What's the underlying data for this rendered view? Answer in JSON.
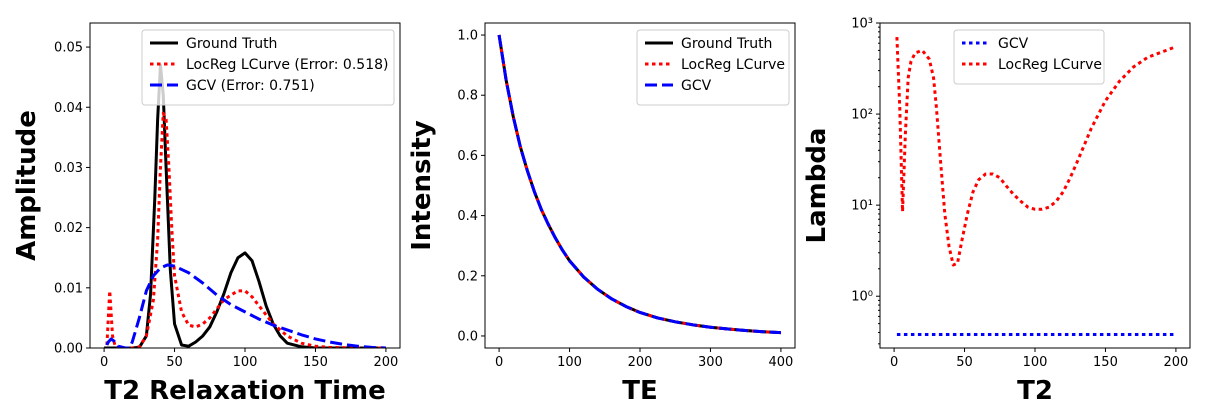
{
  "chart_data": [
    {
      "type": "line",
      "xlabel": "T2 Relaxation Time",
      "ylabel": "Amplitude",
      "xlim": [
        -10,
        210
      ],
      "ylim": [
        0,
        0.054
      ],
      "xticks": [
        0,
        50,
        100,
        150,
        200
      ],
      "yticks": [
        0.0,
        0.01,
        0.02,
        0.03,
        0.04,
        0.05
      ],
      "ytick_labels": [
        "0.00",
        "0.01",
        "0.02",
        "0.03",
        "0.04",
        "0.05"
      ],
      "legend_position": "top-right",
      "series": [
        {
          "name": "Ground Truth",
          "color": "#000000",
          "style": "solid",
          "x": [
            0,
            20,
            25,
            30,
            33,
            36,
            38,
            40,
            42,
            44,
            47,
            50,
            55,
            60,
            65,
            70,
            75,
            80,
            85,
            90,
            95,
            100,
            105,
            110,
            115,
            120,
            125,
            130,
            140,
            150,
            200
          ],
          "y": [
            0,
            0,
            0.0001,
            0.002,
            0.009,
            0.025,
            0.038,
            0.047,
            0.042,
            0.03,
            0.013,
            0.004,
            0.0005,
            0.0003,
            0.001,
            0.002,
            0.0035,
            0.006,
            0.009,
            0.0125,
            0.015,
            0.0158,
            0.0145,
            0.011,
            0.007,
            0.004,
            0.002,
            0.0008,
            0.0002,
            0,
            0
          ]
        },
        {
          "name": "LocReg LCurve (Error: 0.518)",
          "color": "#ff0000",
          "style": "dotted",
          "x": [
            2,
            4,
            6,
            8,
            10,
            15,
            20,
            25,
            30,
            35,
            38,
            40,
            42,
            44,
            46,
            48,
            50,
            55,
            60,
            65,
            70,
            75,
            80,
            85,
            90,
            95,
            100,
            105,
            110,
            120,
            130,
            140,
            150,
            160,
            180,
            200
          ],
          "y": [
            0.0005,
            0.0095,
            0.002,
            0.0002,
            0.0001,
            0,
            0,
            0.0002,
            0.002,
            0.008,
            0.018,
            0.03,
            0.039,
            0.038,
            0.03,
            0.02,
            0.012,
            0.006,
            0.0038,
            0.0035,
            0.004,
            0.005,
            0.0065,
            0.008,
            0.0088,
            0.0095,
            0.0095,
            0.0085,
            0.007,
            0.004,
            0.002,
            0.0008,
            0.0003,
            0.0001,
            0,
            0
          ]
        },
        {
          "name": "GCV (Error: 0.751)",
          "color": "#0000ff",
          "style": "dashed",
          "x": [
            2,
            3,
            5,
            8,
            10,
            15,
            18,
            20,
            25,
            30,
            35,
            40,
            45,
            50,
            60,
            70,
            80,
            90,
            100,
            110,
            120,
            130,
            140,
            150,
            160,
            170,
            180,
            190,
            200
          ],
          "y": [
            0.0005,
            0.001,
            0.0015,
            0.001,
            0.0003,
            0,
            0,
            0.001,
            0.005,
            0.0095,
            0.012,
            0.0133,
            0.0138,
            0.0136,
            0.0125,
            0.0108,
            0.0088,
            0.0072,
            0.006,
            0.0048,
            0.0038,
            0.003,
            0.0022,
            0.0015,
            0.001,
            0.0006,
            0.0003,
            0.0001,
            0
          ]
        }
      ]
    },
    {
      "type": "line",
      "xlabel": "TE",
      "ylabel": "Intensity",
      "xlim": [
        -20,
        420
      ],
      "ylim": [
        -0.04,
        1.04
      ],
      "xticks": [
        0,
        100,
        200,
        300,
        400
      ],
      "yticks": [
        0.0,
        0.2,
        0.4,
        0.6,
        0.8,
        1.0
      ],
      "ytick_labels": [
        "0.0",
        "0.2",
        "0.4",
        "0.6",
        "0.8",
        "1.0"
      ],
      "legend_position": "top-right",
      "series": [
        {
          "name": "Ground Truth",
          "color": "#000000",
          "style": "solid",
          "x": [
            0,
            10,
            20,
            30,
            40,
            50,
            60,
            70,
            80,
            90,
            100,
            120,
            140,
            160,
            180,
            200,
            225,
            250,
            275,
            300,
            325,
            350,
            375,
            400
          ],
          "y": [
            1.0,
            0.85,
            0.73,
            0.63,
            0.55,
            0.48,
            0.42,
            0.37,
            0.325,
            0.285,
            0.25,
            0.196,
            0.155,
            0.123,
            0.098,
            0.078,
            0.06,
            0.047,
            0.037,
            0.029,
            0.023,
            0.018,
            0.014,
            0.011
          ]
        },
        {
          "name": "LocReg LCurve",
          "color": "#ff0000",
          "style": "dotted",
          "x": [
            0,
            10,
            20,
            30,
            40,
            50,
            60,
            70,
            80,
            90,
            100,
            120,
            140,
            160,
            180,
            200,
            225,
            250,
            275,
            300,
            325,
            350,
            375,
            400
          ],
          "y": [
            1.0,
            0.85,
            0.73,
            0.63,
            0.55,
            0.48,
            0.42,
            0.37,
            0.325,
            0.285,
            0.25,
            0.196,
            0.155,
            0.123,
            0.098,
            0.078,
            0.06,
            0.047,
            0.037,
            0.029,
            0.023,
            0.018,
            0.014,
            0.011
          ]
        },
        {
          "name": "GCV",
          "color": "#0000ff",
          "style": "dashed",
          "x": [
            0,
            10,
            20,
            30,
            40,
            50,
            60,
            70,
            80,
            90,
            100,
            120,
            140,
            160,
            180,
            200,
            225,
            250,
            275,
            300,
            325,
            350,
            375,
            400
          ],
          "y": [
            1.0,
            0.85,
            0.73,
            0.63,
            0.55,
            0.48,
            0.42,
            0.37,
            0.325,
            0.285,
            0.25,
            0.196,
            0.155,
            0.123,
            0.098,
            0.078,
            0.06,
            0.047,
            0.037,
            0.029,
            0.023,
            0.018,
            0.014,
            0.011
          ]
        }
      ]
    },
    {
      "type": "line",
      "xlabel": "T2",
      "ylabel": "Lambda",
      "xlim": [
        -10,
        210
      ],
      "ylim": [
        0.27,
        1000
      ],
      "yscale": "log",
      "xticks": [
        0,
        50,
        100,
        150,
        200
      ],
      "yticks": [
        1,
        10,
        100,
        1000
      ],
      "ytick_labels": [
        "10⁰",
        "10¹",
        "10²",
        "10³"
      ],
      "legend_position": "top-center",
      "series": [
        {
          "name": "GCV",
          "color": "#0000ff",
          "style": "dotted",
          "x": [
            2,
            200
          ],
          "y": [
            0.38,
            0.38
          ]
        },
        {
          "name": "LocReg LCurve",
          "color": "#ff0000",
          "style": "dotted",
          "x": [
            2,
            4,
            6,
            8,
            10,
            12,
            15,
            20,
            25,
            28,
            30,
            33,
            36,
            39,
            42,
            45,
            48,
            52,
            56,
            60,
            65,
            70,
            75,
            80,
            85,
            90,
            95,
            100,
            105,
            110,
            115,
            120,
            125,
            130,
            140,
            150,
            160,
            170,
            180,
            190,
            200
          ],
          "y": [
            700,
            120,
            8.5,
            60,
            250,
            380,
            470,
            500,
            400,
            250,
            120,
            30,
            8,
            3.5,
            2.2,
            2.3,
            4,
            8,
            14,
            19,
            22,
            22,
            20,
            16,
            13,
            11,
            9.5,
            9,
            9,
            9.5,
            11,
            14,
            20,
            30,
            70,
            140,
            230,
            330,
            420,
            480,
            550
          ]
        }
      ]
    }
  ]
}
